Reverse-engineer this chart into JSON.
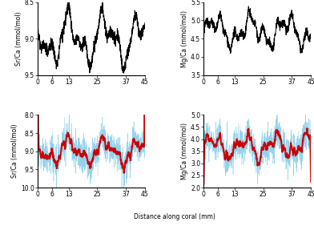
{
  "xlabel": "Distance along coral (mm)",
  "ylabel_sr": "Sr/Ca (mmol/mol)",
  "ylabel_mg": "Mg/Ca (mmol/mol)",
  "x_ticks": [
    0,
    6,
    13,
    25,
    37,
    45
  ],
  "x_lim": [
    0,
    45
  ],
  "sn_sr_ylim": [
    8.5,
    9.5
  ],
  "sn_sr_yticks": [
    8.5,
    9.0,
    9.5
  ],
  "sn_mg_ylim": [
    3.5,
    5.5
  ],
  "sn_mg_yticks": [
    3.5,
    4.0,
    4.5,
    5.0,
    5.5
  ],
  "la_sr_ylim": [
    8.0,
    10.0
  ],
  "la_sr_yticks": [
    8.0,
    8.5,
    9.0,
    9.5,
    10.0
  ],
  "la_mg_ylim": [
    2.0,
    5.0
  ],
  "la_mg_yticks": [
    2.0,
    2.5,
    3.0,
    3.5,
    4.0,
    4.5,
    5.0
  ],
  "line_color_sn": "#000000",
  "line_color_la_raw": "#87CEEB",
  "line_color_la_avg": "#CC0000",
  "seed": 42,
  "n_points": 900
}
